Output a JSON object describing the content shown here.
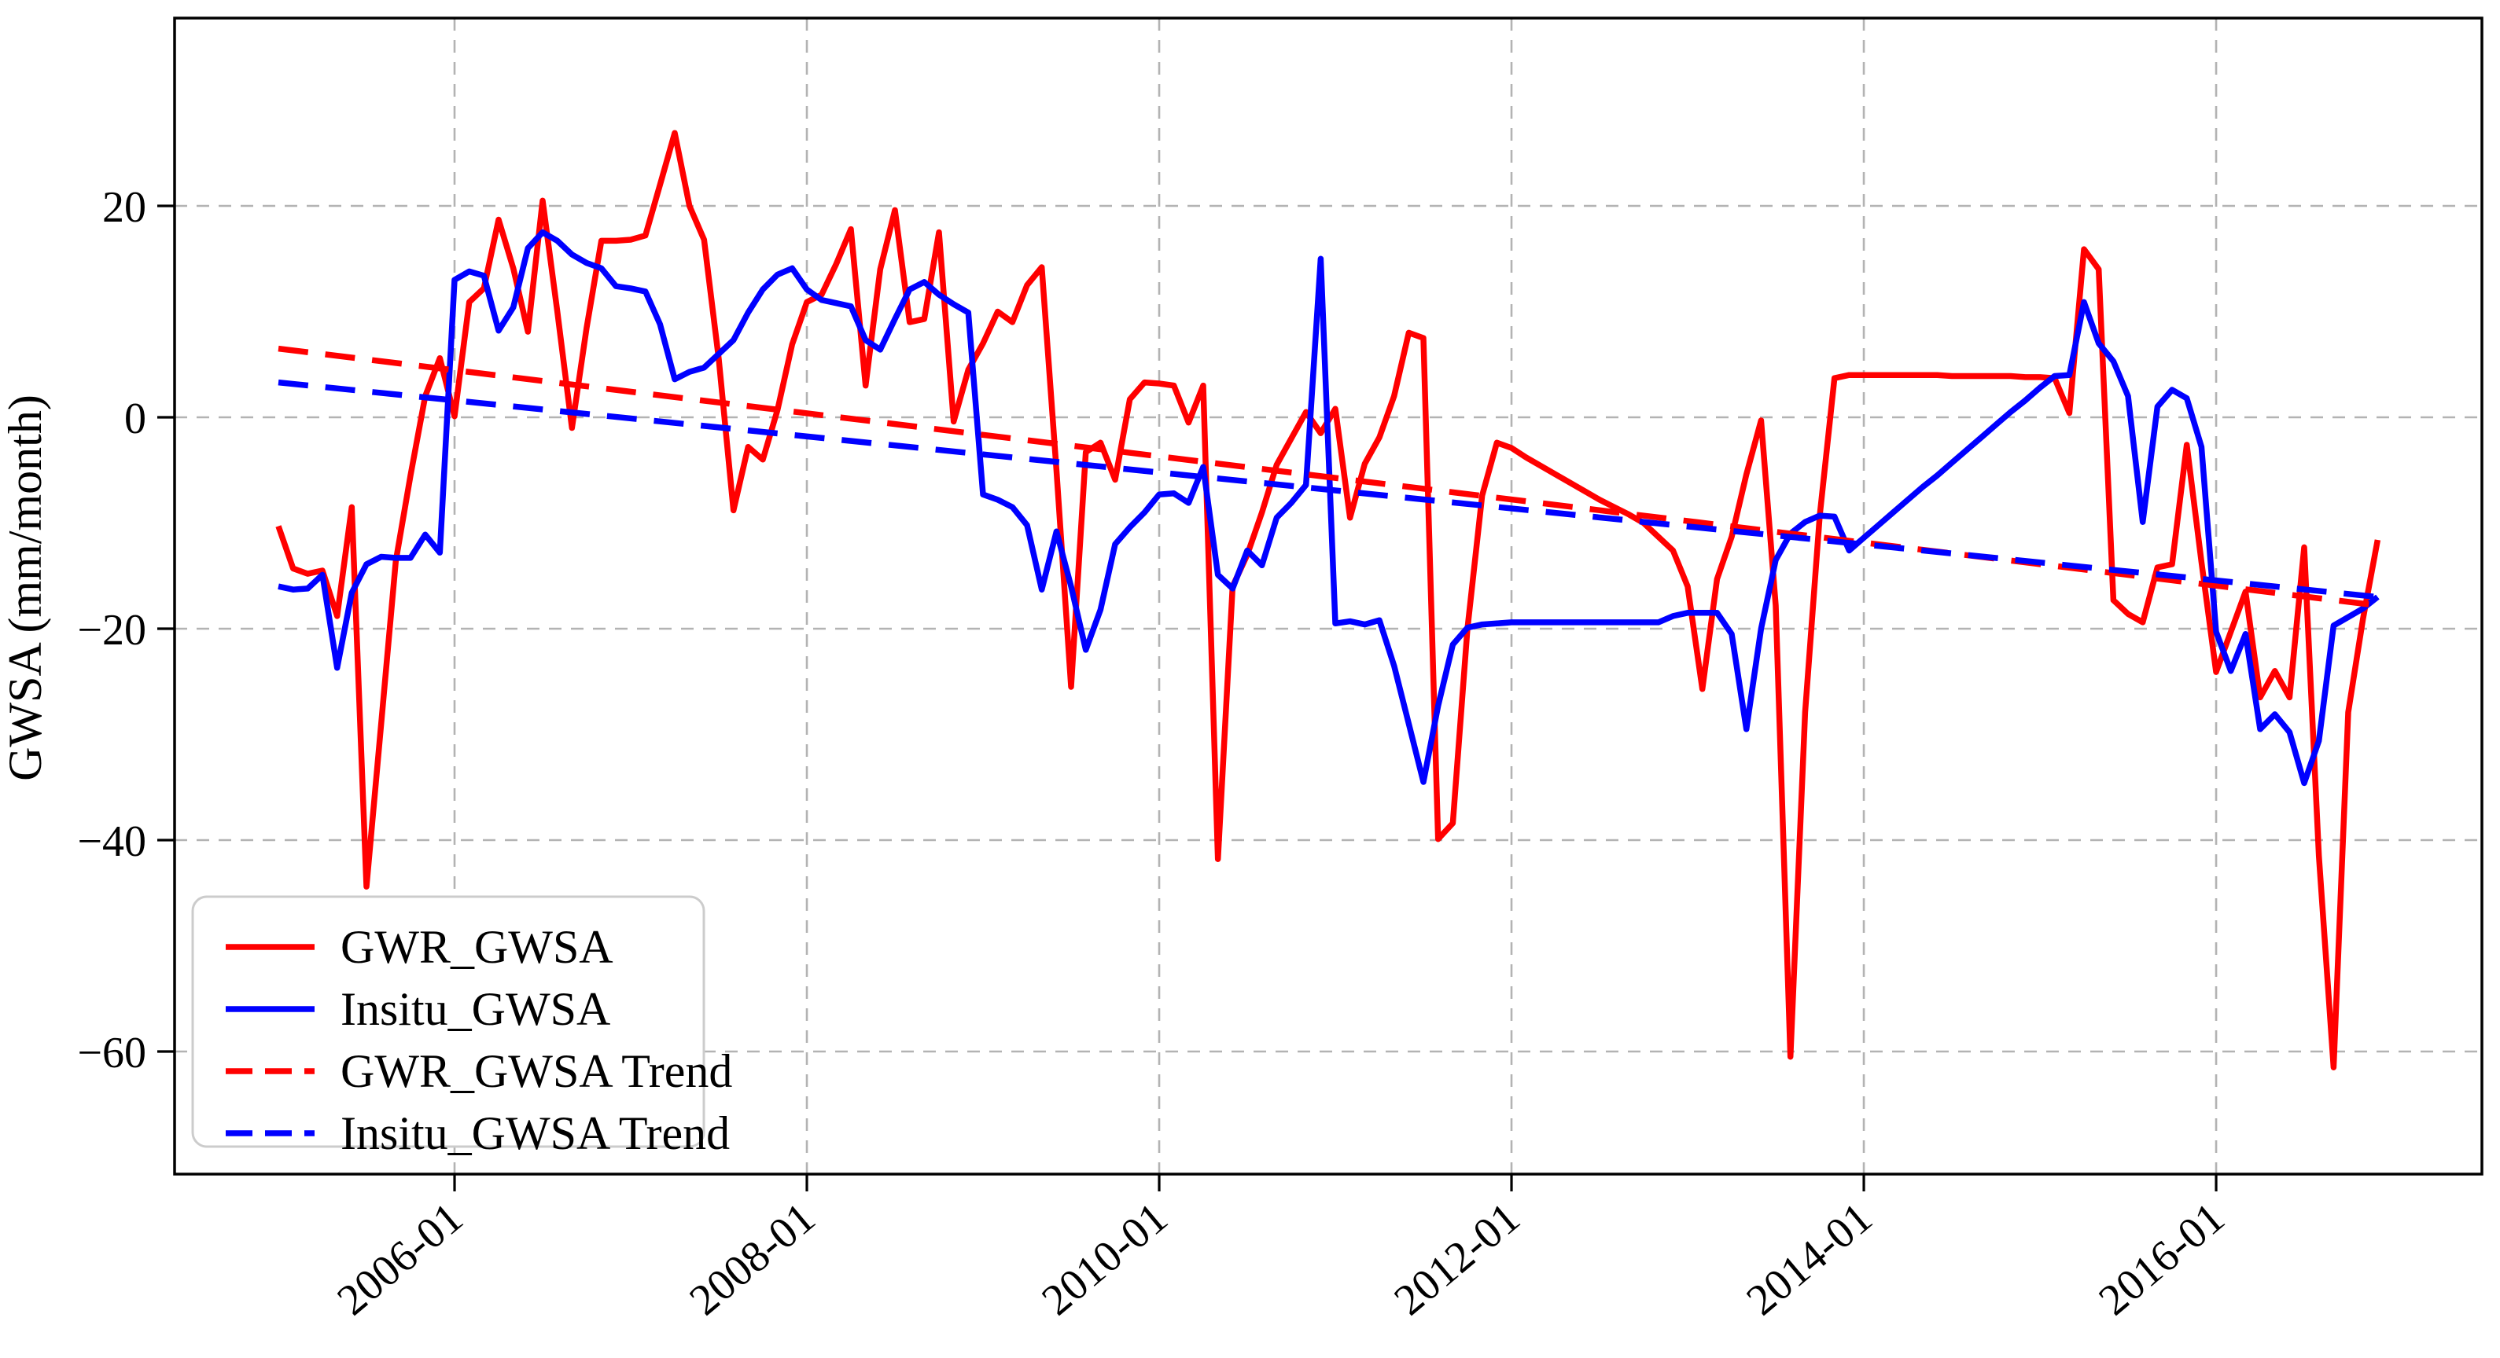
{
  "figure": {
    "ylabel": "GWSA (mm/month)",
    "background": "#ffffff",
    "grid_color": "#b3b3b3",
    "axis_color": "#000000"
  },
  "axes": {
    "y_ticks": [
      {
        "label": "20",
        "value": 20
      },
      {
        "label": "0",
        "value": 0
      },
      {
        "label": "−20",
        "value": -20
      },
      {
        "label": "−40",
        "value": -40
      },
      {
        "label": "−60",
        "value": -60
      }
    ],
    "x_ticks": [
      {
        "label": "2006-01",
        "month_index": 12
      },
      {
        "label": "2008-01",
        "month_index": 36
      },
      {
        "label": "2010-01",
        "month_index": 60
      },
      {
        "label": "2012-01",
        "month_index": 84
      },
      {
        "label": "2014-01",
        "month_index": 108
      },
      {
        "label": "2016-01",
        "month_index": 132
      }
    ]
  },
  "legend": {
    "entries": [
      {
        "label": "GWR_GWSA",
        "color": "#ff0000",
        "dashed": false
      },
      {
        "label": "Insitu_GWSA",
        "color": "#0000ff",
        "dashed": false
      },
      {
        "label": "GWR_GWSA Trend",
        "color": "#ff0000",
        "dashed": true
      },
      {
        "label": "Insitu_GWSA Trend",
        "color": "#0000ff",
        "dashed": true
      }
    ]
  },
  "chart_data": {
    "type": "line",
    "title": "",
    "xlabel": "",
    "ylabel": "GWSA (mm/month)",
    "x_start": "2005-01",
    "x_freq": "monthly",
    "n_points": 144,
    "x_tick_labels": [
      "2006-01",
      "2008-01",
      "2010-01",
      "2012-01",
      "2014-01",
      "2016-01"
    ],
    "y_tick_values": [
      20,
      0,
      -20,
      -40,
      -60
    ],
    "ylim": [
      -72,
      38
    ],
    "grid": true,
    "legend_position": "lower left",
    "series": [
      {
        "name": "GWR_GWSA",
        "color": "#ff0000",
        "style": "solid",
        "values": [
          -10.3,
          -14.3,
          -14.8,
          -14.5,
          -18.8,
          -8.5,
          -44.4,
          -29.0,
          -13.6,
          -5.5,
          2.0,
          5.6,
          0.1,
          10.9,
          12.2,
          18.7,
          14.1,
          8.1,
          20.5,
          10.0,
          -1.0,
          8.5,
          16.7,
          16.7,
          16.8,
          17.2,
          22.0,
          26.9,
          20.0,
          16.8,
          5.5,
          -8.8,
          -2.8,
          -4.0,
          0.7,
          6.9,
          10.9,
          11.6,
          14.5,
          17.8,
          3.0,
          14.0,
          19.6,
          9.0,
          9.3,
          17.5,
          -0.4,
          4.5,
          7.0,
          10.0,
          9.0,
          12.5,
          14.2,
          -5.0,
          -25.5,
          -3.3,
          -2.4,
          -5.9,
          1.7,
          3.3,
          3.2,
          3.0,
          -0.5,
          3.0,
          -41.8,
          -16.0,
          -13.0,
          -9.0,
          -4.5,
          -2.0,
          0.5,
          -1.5,
          0.8,
          -9.5,
          -4.4,
          -1.9,
          2.0,
          8.0,
          7.5,
          -39.9,
          -38.4,
          -20.0,
          -7.4,
          -2.4,
          -2.9,
          -3.8,
          -4.6,
          -5.4,
          -6.2,
          -7.0,
          -7.8,
          -8.5,
          -9.2,
          -10.0,
          -11.3,
          -12.6,
          -16.0,
          -25.7,
          -15.3,
          -11.3,
          -5.4,
          -0.3,
          -17.8,
          -60.5,
          -27.9,
          -9.3,
          3.7,
          4.0,
          4.0,
          4.0,
          4.0,
          4.0,
          4.0,
          4.0,
          3.9,
          3.9,
          3.9,
          3.9,
          3.9,
          3.8,
          3.8,
          3.7,
          0.4,
          15.9,
          14.0,
          -17.3,
          -18.6,
          -19.4,
          -14.2,
          -13.9,
          -2.6,
          -13.7,
          -24.1,
          -20.3,
          -16.5,
          -26.5,
          -24.0,
          -26.5,
          -12.3,
          -41.5,
          -61.5,
          -27.9,
          -19.1,
          -11.6
        ]
      },
      {
        "name": "Insitu_GWSA",
        "color": "#0000ff",
        "style": "solid",
        "values": [
          -16.0,
          -16.3,
          -16.2,
          -14.9,
          -23.7,
          -16.6,
          -13.9,
          -13.2,
          -13.3,
          -13.3,
          -11.1,
          -12.8,
          13.0,
          13.8,
          13.4,
          8.2,
          10.4,
          16.0,
          17.5,
          16.7,
          15.4,
          14.6,
          14.1,
          12.4,
          12.2,
          11.9,
          8.8,
          3.6,
          4.3,
          4.7,
          6.0,
          7.3,
          9.9,
          12.1,
          13.5,
          14.1,
          12.1,
          11.1,
          10.8,
          10.5,
          7.3,
          6.4,
          9.3,
          12.1,
          12.8,
          11.6,
          10.7,
          9.9,
          -7.3,
          -7.8,
          -8.5,
          -10.2,
          -16.3,
          -10.8,
          -16.0,
          -22.0,
          -18.2,
          -12.0,
          -10.4,
          -9.0,
          -7.3,
          -7.2,
          -8.1,
          -4.7,
          -14.9,
          -16.2,
          -12.6,
          -14.0,
          -9.5,
          -8.1,
          -6.4,
          15.0,
          -19.5,
          -19.3,
          -19.6,
          -19.2,
          -23.5,
          -29.0,
          -34.5,
          -27.3,
          -21.5,
          -19.9,
          -19.6,
          -19.5,
          -19.4,
          -19.4,
          -19.4,
          -19.4,
          -19.4,
          -19.4,
          -19.4,
          -19.4,
          -19.4,
          -19.4,
          -19.4,
          -18.8,
          -18.5,
          -18.5,
          -18.5,
          -20.5,
          -29.5,
          -20.0,
          -13.5,
          -11.0,
          -9.9,
          -9.3,
          -9.4,
          -12.6,
          -11.4,
          -10.2,
          -9.0,
          -7.8,
          -6.6,
          -5.5,
          -4.3,
          -3.1,
          -1.9,
          -0.7,
          0.5,
          1.6,
          2.8,
          3.9,
          4.0,
          10.9,
          7.0,
          5.3,
          2.0,
          -9.9,
          1.0,
          2.6,
          1.8,
          -2.8,
          -20.3,
          -24.0,
          -20.5,
          -29.5,
          -28.1,
          -29.8,
          -34.6,
          -30.6,
          -19.7,
          -18.9,
          -18.1,
          -17.0
        ]
      },
      {
        "name": "GWR_GWSA Trend",
        "color": "#ff0000",
        "style": "dashed",
        "trend_line": {
          "start_month_index": 0,
          "end_month_index": 143,
          "start_value": 6.5,
          "end_value": -17.8
        }
      },
      {
        "name": "Insitu_GWSA Trend",
        "color": "#0000ff",
        "style": "dashed",
        "trend_line": {
          "start_month_index": 0,
          "end_month_index": 143,
          "start_value": 3.3,
          "end_value": -17.0
        }
      }
    ]
  }
}
